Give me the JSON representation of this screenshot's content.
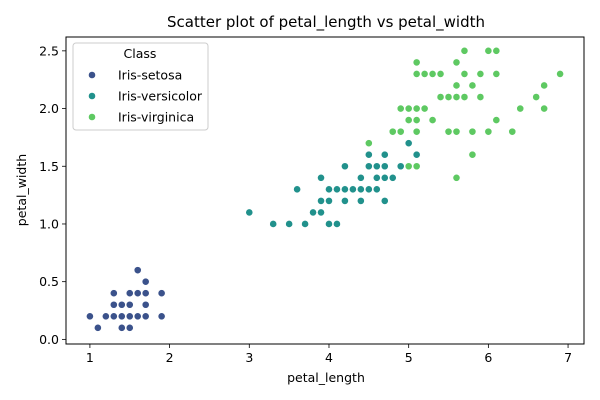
{
  "chart_data": {
    "type": "scatter",
    "title": "Scatter plot of petal_length vs petal_width",
    "xlabel": "petal_length",
    "ylabel": "petal_width",
    "xlim": [
      0.7,
      7.2
    ],
    "ylim": [
      -0.04,
      2.62
    ],
    "xticks": [
      1,
      2,
      3,
      4,
      5,
      6,
      7
    ],
    "yticks": [
      0.0,
      0.5,
      1.0,
      1.5,
      2.0,
      2.5
    ],
    "grid": false,
    "legend": {
      "title": "Class",
      "placement": "top-left"
    },
    "series": [
      {
        "name": "Iris-setosa",
        "color": "#3b528b",
        "points": [
          [
            1.0,
            0.2
          ],
          [
            1.1,
            0.1
          ],
          [
            1.2,
            0.2
          ],
          [
            1.3,
            0.2
          ],
          [
            1.3,
            0.3
          ],
          [
            1.3,
            0.4
          ],
          [
            1.4,
            0.1
          ],
          [
            1.4,
            0.2
          ],
          [
            1.4,
            0.3
          ],
          [
            1.5,
            0.1
          ],
          [
            1.5,
            0.2
          ],
          [
            1.5,
            0.3
          ],
          [
            1.5,
            0.4
          ],
          [
            1.6,
            0.2
          ],
          [
            1.6,
            0.4
          ],
          [
            1.6,
            0.6
          ],
          [
            1.7,
            0.2
          ],
          [
            1.7,
            0.3
          ],
          [
            1.7,
            0.4
          ],
          [
            1.7,
            0.5
          ],
          [
            1.9,
            0.2
          ],
          [
            1.9,
            0.4
          ]
        ]
      },
      {
        "name": "Iris-versicolor",
        "color": "#21918c",
        "points": [
          [
            3.0,
            1.1
          ],
          [
            3.3,
            1.0
          ],
          [
            3.5,
            1.0
          ],
          [
            3.6,
            1.3
          ],
          [
            3.7,
            1.0
          ],
          [
            3.8,
            1.1
          ],
          [
            3.9,
            1.1
          ],
          [
            3.9,
            1.2
          ],
          [
            3.9,
            1.4
          ],
          [
            4.0,
            1.0
          ],
          [
            4.0,
            1.2
          ],
          [
            4.0,
            1.3
          ],
          [
            4.1,
            1.0
          ],
          [
            4.1,
            1.3
          ],
          [
            4.2,
            1.2
          ],
          [
            4.2,
            1.3
          ],
          [
            4.2,
            1.5
          ],
          [
            4.3,
            1.3
          ],
          [
            4.4,
            1.2
          ],
          [
            4.4,
            1.3
          ],
          [
            4.4,
            1.4
          ],
          [
            4.5,
            1.3
          ],
          [
            4.5,
            1.5
          ],
          [
            4.5,
            1.6
          ],
          [
            4.6,
            1.3
          ],
          [
            4.6,
            1.4
          ],
          [
            4.6,
            1.5
          ],
          [
            4.7,
            1.2
          ],
          [
            4.7,
            1.4
          ],
          [
            4.7,
            1.5
          ],
          [
            4.7,
            1.6
          ],
          [
            4.8,
            1.4
          ],
          [
            4.8,
            1.8
          ],
          [
            4.9,
            1.5
          ],
          [
            5.0,
            1.7
          ],
          [
            5.1,
            1.6
          ]
        ]
      },
      {
        "name": "Iris-virginica",
        "color": "#5ec962",
        "points": [
          [
            4.5,
            1.7
          ],
          [
            4.8,
            1.8
          ],
          [
            4.9,
            1.8
          ],
          [
            4.9,
            2.0
          ],
          [
            5.0,
            1.5
          ],
          [
            5.0,
            1.9
          ],
          [
            5.0,
            2.0
          ],
          [
            5.1,
            1.5
          ],
          [
            5.1,
            1.8
          ],
          [
            5.1,
            1.9
          ],
          [
            5.1,
            2.0
          ],
          [
            5.1,
            2.3
          ],
          [
            5.1,
            2.4
          ],
          [
            5.2,
            2.0
          ],
          [
            5.2,
            2.3
          ],
          [
            5.3,
            1.9
          ],
          [
            5.3,
            2.3
          ],
          [
            5.4,
            2.1
          ],
          [
            5.4,
            2.3
          ],
          [
            5.5,
            1.8
          ],
          [
            5.5,
            2.1
          ],
          [
            5.6,
            1.4
          ],
          [
            5.6,
            1.8
          ],
          [
            5.6,
            2.1
          ],
          [
            5.6,
            2.2
          ],
          [
            5.6,
            2.4
          ],
          [
            5.7,
            2.1
          ],
          [
            5.7,
            2.3
          ],
          [
            5.7,
            2.5
          ],
          [
            5.8,
            1.6
          ],
          [
            5.8,
            1.8
          ],
          [
            5.8,
            2.2
          ],
          [
            5.9,
            2.1
          ],
          [
            5.9,
            2.3
          ],
          [
            6.0,
            1.8
          ],
          [
            6.0,
            2.5
          ],
          [
            6.1,
            1.9
          ],
          [
            6.1,
            2.3
          ],
          [
            6.1,
            2.5
          ],
          [
            6.3,
            1.8
          ],
          [
            6.4,
            2.0
          ],
          [
            6.6,
            2.1
          ],
          [
            6.7,
            2.0
          ],
          [
            6.7,
            2.2
          ],
          [
            6.9,
            2.3
          ]
        ]
      }
    ]
  }
}
